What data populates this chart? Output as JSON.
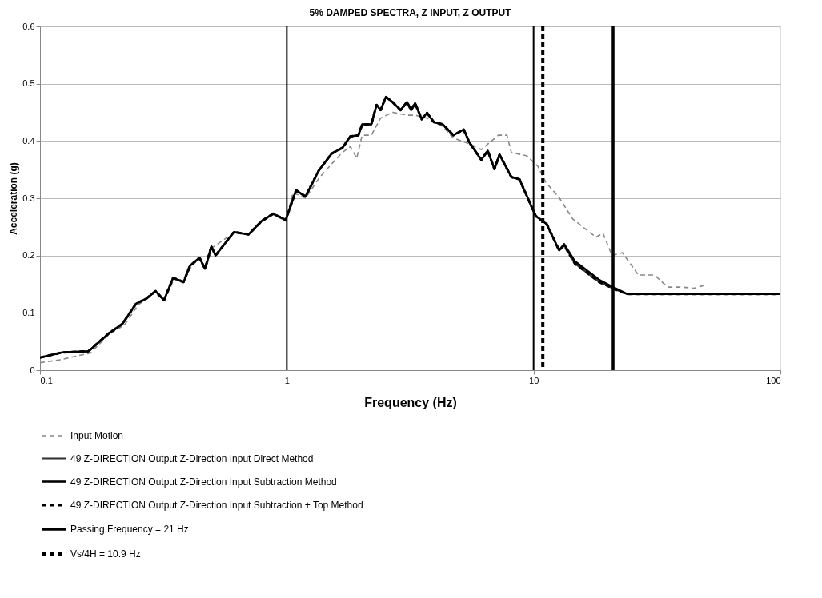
{
  "chart_data": {
    "type": "line",
    "title": "5% DAMPED SPECTRA, Z INPUT, Z OUTPUT",
    "xlabel": "Frequency (Hz)",
    "ylabel": "Acceleration (g)",
    "log": "x",
    "xlim": [
      0.1,
      100
    ],
    "xticks": [
      0.1,
      1,
      10,
      100
    ],
    "ylim": [
      0,
      0.6
    ],
    "yticks": [
      0,
      0.1,
      0.2,
      0.3,
      0.4,
      0.5,
      0.6
    ],
    "grid": "y",
    "legend": "bottom",
    "series": [
      {
        "name": "Input Motion",
        "color": "#888888",
        "line_style": "dashed",
        "x": [
          0.1,
          0.12,
          0.16,
          0.19,
          0.22,
          0.25,
          0.29,
          0.32,
          0.35,
          0.38,
          0.41,
          0.44,
          0.47,
          0.5,
          0.61,
          0.7,
          0.79,
          0.88,
          0.99,
          1.06,
          1.19,
          1.35,
          1.52,
          1.68,
          1.81,
          1.92,
          2.02,
          2.2,
          2.4,
          2.68,
          3.07,
          3.31,
          3.7,
          4.29,
          4.73,
          5.5,
          6.14,
          7.2,
          7.8,
          8.13,
          9.4,
          10.4,
          11.2,
          12.7,
          14.4,
          17.9,
          19.1,
          20.8,
          22.9,
          26.6,
          30.9,
          34.9,
          39.5,
          44.7,
          50
        ],
        "values": [
          0.013,
          0.018,
          0.03,
          0.062,
          0.079,
          0.114,
          0.135,
          0.122,
          0.16,
          0.152,
          0.181,
          0.195,
          0.178,
          0.214,
          0.24,
          0.236,
          0.258,
          0.272,
          0.26,
          0.31,
          0.3,
          0.335,
          0.36,
          0.38,
          0.39,
          0.37,
          0.41,
          0.41,
          0.44,
          0.45,
          0.445,
          0.445,
          0.44,
          0.425,
          0.405,
          0.395,
          0.385,
          0.41,
          0.41,
          0.38,
          0.374,
          0.356,
          0.328,
          0.301,
          0.264,
          0.232,
          0.239,
          0.2,
          0.205,
          0.166,
          0.166,
          0.145,
          0.145,
          0.143,
          0.149
        ]
      },
      {
        "name": "49 Z-DIRECTION Output Z-Direction Input Direct Method",
        "color": "#333333",
        "line_style": "solid",
        "x": [
          0.1,
          0.123,
          0.157,
          0.191,
          0.216,
          0.245,
          0.27,
          0.294,
          0.318,
          0.346,
          0.382,
          0.405,
          0.443,
          0.466,
          0.495,
          0.514,
          0.61,
          0.7,
          0.79,
          0.88,
          0.99,
          1.09,
          1.19,
          1.35,
          1.52,
          1.68,
          1.81,
          1.95,
          2.02,
          2.2,
          2.31,
          2.4,
          2.52,
          2.68,
          2.89,
          3.07,
          3.19,
          3.31,
          3.52,
          3.7,
          3.94,
          4.29,
          4.73,
          5.21,
          5.5,
          6.14,
          6.52,
          6.94,
          7.28,
          8.13,
          8.77,
          10.2,
          11.3,
          12.7,
          13.3,
          14.7,
          18.4,
          21.4,
          23.9,
          100
        ],
        "values": [
          0.022,
          0.031,
          0.033,
          0.065,
          0.081,
          0.116,
          0.125,
          0.138,
          0.122,
          0.161,
          0.154,
          0.182,
          0.196,
          0.177,
          0.216,
          0.2,
          0.241,
          0.237,
          0.26,
          0.273,
          0.262,
          0.314,
          0.303,
          0.349,
          0.378,
          0.388,
          0.408,
          0.41,
          0.429,
          0.429,
          0.463,
          0.454,
          0.477,
          0.468,
          0.454,
          0.468,
          0.454,
          0.466,
          0.438,
          0.449,
          0.433,
          0.429,
          0.41,
          0.42,
          0.397,
          0.367,
          0.383,
          0.351,
          0.376,
          0.337,
          0.333,
          0.269,
          0.255,
          0.209,
          0.218,
          0.186,
          0.154,
          0.141,
          0.133,
          0.133
        ]
      },
      {
        "name": "49 Z-DIRECTION Output Z-Direction Input Subtraction Method",
        "color": "#000000",
        "line_style": "solid",
        "x": [
          0.1,
          0.123,
          0.157,
          0.191,
          0.216,
          0.245,
          0.27,
          0.294,
          0.318,
          0.346,
          0.382,
          0.405,
          0.443,
          0.466,
          0.495,
          0.514,
          0.61,
          0.7,
          0.79,
          0.88,
          0.99,
          1.09,
          1.19,
          1.35,
          1.52,
          1.68,
          1.81,
          1.95,
          2.02,
          2.2,
          2.31,
          2.4,
          2.52,
          2.68,
          2.89,
          3.07,
          3.19,
          3.31,
          3.52,
          3.7,
          3.94,
          4.29,
          4.73,
          5.21,
          5.5,
          6.14,
          6.52,
          6.94,
          7.28,
          8.13,
          8.77,
          10.2,
          11.3,
          12.7,
          13.3,
          14.7,
          18.4,
          21.4,
          23.9,
          100
        ],
        "values": [
          0.022,
          0.031,
          0.033,
          0.065,
          0.081,
          0.116,
          0.125,
          0.138,
          0.122,
          0.161,
          0.154,
          0.182,
          0.196,
          0.177,
          0.216,
          0.2,
          0.241,
          0.237,
          0.26,
          0.273,
          0.262,
          0.314,
          0.303,
          0.349,
          0.378,
          0.388,
          0.408,
          0.41,
          0.429,
          0.429,
          0.463,
          0.454,
          0.477,
          0.468,
          0.454,
          0.468,
          0.454,
          0.466,
          0.438,
          0.449,
          0.433,
          0.429,
          0.41,
          0.42,
          0.397,
          0.367,
          0.383,
          0.351,
          0.376,
          0.337,
          0.333,
          0.269,
          0.255,
          0.209,
          0.22,
          0.19,
          0.158,
          0.143,
          0.133,
          0.133
        ]
      },
      {
        "name": "49 Z-DIRECTION Output Z-Direction Input Subtraction + Top Method",
        "color": "#000000",
        "line_style": "dashed",
        "x": [
          0.1,
          0.123,
          0.157,
          0.191,
          0.216,
          0.245,
          0.27,
          0.294,
          0.318,
          0.346,
          0.382,
          0.405,
          0.443,
          0.466,
          0.495,
          0.514,
          0.61,
          0.7,
          0.79,
          0.88,
          0.99,
          1.09,
          1.19,
          1.35,
          1.52,
          1.68,
          1.81,
          1.95,
          2.02,
          2.2,
          2.31,
          2.4,
          2.52,
          2.68,
          2.89,
          3.07,
          3.19,
          3.31,
          3.52,
          3.7,
          3.94,
          4.29,
          4.73,
          5.21,
          5.5,
          6.14,
          6.52,
          6.94,
          7.28,
          8.13,
          8.77,
          10.2,
          11.3,
          12.7,
          13.3,
          14.7,
          18.4,
          21.4,
          23.9,
          100
        ],
        "values": [
          0.022,
          0.031,
          0.033,
          0.065,
          0.081,
          0.116,
          0.125,
          0.138,
          0.122,
          0.161,
          0.154,
          0.182,
          0.196,
          0.177,
          0.216,
          0.2,
          0.241,
          0.237,
          0.26,
          0.273,
          0.262,
          0.314,
          0.303,
          0.349,
          0.378,
          0.388,
          0.408,
          0.41,
          0.429,
          0.429,
          0.463,
          0.454,
          0.477,
          0.468,
          0.454,
          0.468,
          0.454,
          0.466,
          0.438,
          0.449,
          0.433,
          0.429,
          0.41,
          0.42,
          0.397,
          0.367,
          0.383,
          0.351,
          0.376,
          0.337,
          0.333,
          0.269,
          0.255,
          0.209,
          0.218,
          0.186,
          0.154,
          0.141,
          0.133,
          0.133
        ]
      }
    ],
    "ref_lines": [
      {
        "axis": "x",
        "value": 1,
        "color": "#000000",
        "line_style": "solid"
      },
      {
        "axis": "x",
        "value": 10,
        "color": "#000000",
        "line_style": "solid"
      },
      {
        "axis": "x",
        "value": 21,
        "label": "Passing Frequency = 21 Hz",
        "color": "#000000",
        "line_style": "solid"
      },
      {
        "axis": "x",
        "value": 10.9,
        "label": "Vs/4H = 10.9 Hz",
        "color": "#000000",
        "line_style": "dashed"
      }
    ]
  }
}
